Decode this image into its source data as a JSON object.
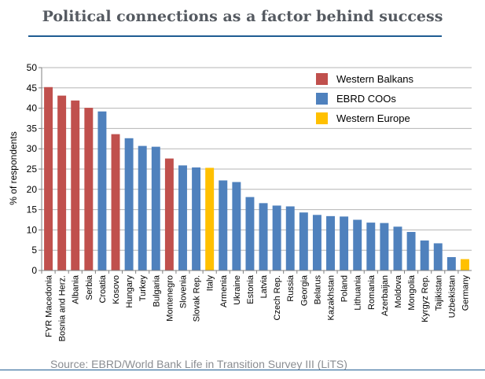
{
  "chart_data": {
    "type": "bar",
    "title": "Political connections as a factor behind success",
    "ylabel": "% of respondents",
    "xlabel": "",
    "ylim": [
      0,
      50
    ],
    "yticks": [
      0,
      5,
      10,
      15,
      20,
      25,
      30,
      35,
      40,
      45,
      50
    ],
    "grid": true,
    "legend_position": "top-right",
    "groups": [
      {
        "name": "Western Balkans",
        "color": "#c0504d"
      },
      {
        "name": "EBRD COOs",
        "color": "#4f81bd"
      },
      {
        "name": "Western Europe",
        "color": "#ffc000"
      }
    ],
    "categories": [
      "FYR Macedonia",
      "Bosnia and Herz.",
      "Albania",
      "Serbia",
      "Croatia",
      "Kosovo",
      "Hungary",
      "Turkey",
      "Bulgaria",
      "Montenegro",
      "Slovenia",
      "Slovak Rep.",
      "Italy",
      "Armenia",
      "Ukraine",
      "Estonia",
      "Latvia",
      "Czech Rep.",
      "Russia",
      "Georgia",
      "Belarus",
      "Kazakhstan",
      "Poland",
      "Lithuania",
      "Romania",
      "Azerbaijan",
      "Moldova",
      "Mongolia",
      "Kyrgyz Rep.",
      "Tajikistan",
      "Uzbekistan",
      "Germany"
    ],
    "values": [
      45.2,
      43.1,
      41.9,
      40.1,
      39.2,
      33.6,
      32.6,
      30.7,
      30.5,
      27.6,
      25.9,
      25.4,
      25.3,
      22.2,
      21.8,
      18.1,
      16.6,
      16.0,
      15.8,
      14.3,
      13.7,
      13.4,
      13.3,
      12.5,
      11.8,
      11.7,
      10.8,
      9.5,
      7.4,
      6.7,
      3.3,
      2.8
    ],
    "bar_groups": [
      "Western Balkans",
      "Western Balkans",
      "Western Balkans",
      "Western Balkans",
      "EBRD COOs",
      "Western Balkans",
      "EBRD COOs",
      "EBRD COOs",
      "EBRD COOs",
      "Western Balkans",
      "EBRD COOs",
      "EBRD COOs",
      "Western Europe",
      "EBRD COOs",
      "EBRD COOs",
      "EBRD COOs",
      "EBRD COOs",
      "EBRD COOs",
      "EBRD COOs",
      "EBRD COOs",
      "EBRD COOs",
      "EBRD COOs",
      "EBRD COOs",
      "EBRD COOs",
      "EBRD COOs",
      "EBRD COOs",
      "EBRD COOs",
      "EBRD COOs",
      "EBRD COOs",
      "EBRD COOs",
      "EBRD COOs",
      "Western Europe"
    ]
  },
  "source": "Source: EBRD/World Bank Life in Transition Survey III (LiTS)"
}
